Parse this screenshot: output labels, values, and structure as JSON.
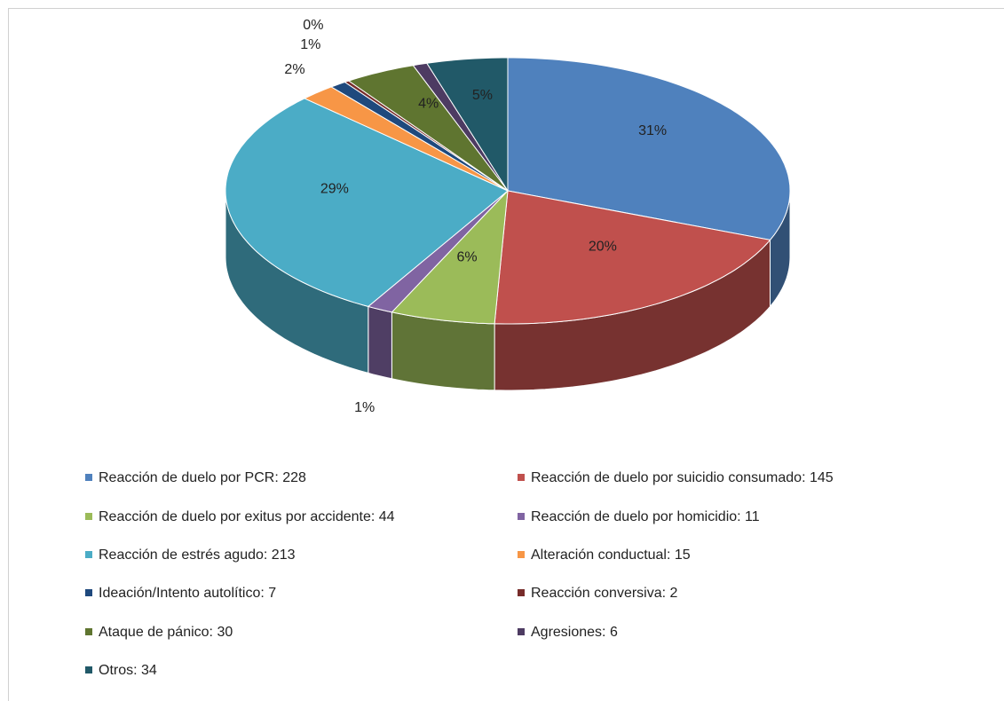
{
  "chart_data": {
    "type": "pie",
    "categories": [
      "Reacción de duelo por PCR: 228",
      "Reacción de duelo por suicidio consumado: 145",
      "Reacción de duelo por exitus por accidente: 44",
      "Reacción de duelo por homicidio: 11",
      "Reacción de estrés agudo: 213",
      "Alteración conductual: 15",
      "Ideación/Intento autolítico: 7",
      "Reacción conversiva: 2",
      "Ataque de pánico: 30",
      "Agresiones: 6",
      "Otros: 34"
    ],
    "values": [
      228,
      145,
      44,
      11,
      213,
      15,
      7,
      2,
      30,
      6,
      34
    ],
    "value_labels": [
      "31%",
      "20%",
      "6%",
      "1%",
      "29%",
      "2%",
      "1%",
      "0%",
      "4%",
      "1%",
      "5%"
    ],
    "colors": [
      "#4f81bd",
      "#c0504d",
      "#9bbb59",
      "#8064a2",
      "#4bacc6",
      "#f79646",
      "#1f497d",
      "#772c2a",
      "#5f7530",
      "#4d3b62",
      "#215968"
    ],
    "legend": "bottom"
  }
}
